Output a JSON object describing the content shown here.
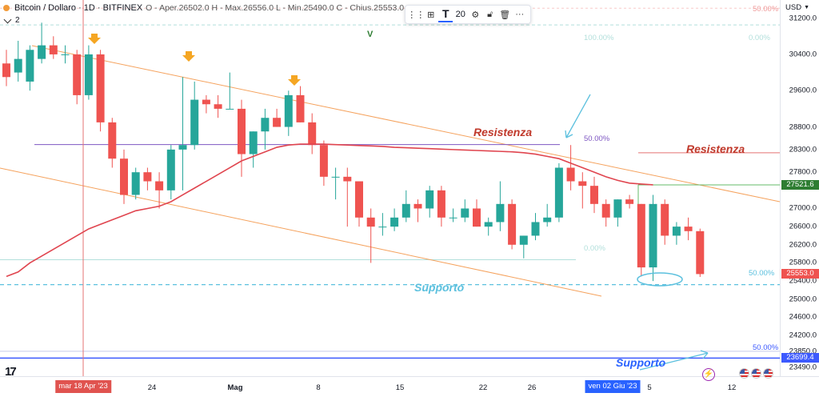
{
  "legend": {
    "symbol": "Bitcoin / Dollaro · 1D · BITFINEX",
    "ohlc": "O - Aper.26502.0 H - Max.26556.0 L - Min.25490.0 C - Chius.25553.0",
    "indicator_count": "2"
  },
  "toolbar": {
    "line_width": "20"
  },
  "price_axis": {
    "currency": "USD",
    "ticks": [
      "31200.0",
      "30400.0",
      "29600.0",
      "28800.0",
      "28300.0",
      "27800.0",
      "27000.0",
      "26600.0",
      "26200.0",
      "25800.0",
      "25400.0",
      "25000.0",
      "24600.0",
      "24200.0",
      "23850.0",
      "23490.0"
    ],
    "tags": {
      "ma": "27521.6",
      "last": "25553.0",
      "support": "23699.4"
    }
  },
  "time_axis": {
    "labels": [
      "24",
      "Mag",
      "8",
      "15",
      "22",
      "26",
      "5",
      "12"
    ],
    "highlights": [
      "mar 18 Apr '23",
      "ven 02 Giu '23"
    ]
  },
  "annotations": {
    "resistance_1": "Resistenza",
    "resistance_2": "Resistenza",
    "support_1": "Supporto",
    "support_2": "Supporto",
    "fib_top_left": "100.00%",
    "fib_top_right": "0.00%",
    "fib_top_far": "50.00%",
    "fib_mid": "50.00%",
    "fib_zero": "0.00%",
    "fib_right_mid": "50.00%",
    "fib_bottom": "50.00%",
    "v_marker": "V"
  },
  "colors": {
    "up": "#26a69a",
    "down": "#ef5350",
    "ma": "#e0454f",
    "channel": "#f5a25d",
    "support": "#3d5afe",
    "annotation_blue": "#5bc0de",
    "resistance_text": "#c0392b"
  },
  "chart_data": {
    "type": "candlestick",
    "ylim": [
      23300,
      31600
    ],
    "candles": [
      {
        "o": 30200,
        "h": 30500,
        "l": 29700,
        "c": 29900
      },
      {
        "o": 30000,
        "h": 30700,
        "l": 29800,
        "c": 30300
      },
      {
        "o": 29800,
        "h": 30600,
        "l": 29600,
        "c": 30500
      },
      {
        "o": 30300,
        "h": 31100,
        "l": 30200,
        "c": 30600
      },
      {
        "o": 30600,
        "h": 30800,
        "l": 30300,
        "c": 30400
      },
      {
        "o": 30400,
        "h": 30600,
        "l": 30200,
        "c": 30400
      },
      {
        "o": 30400,
        "h": 30500,
        "l": 29300,
        "c": 29500
      },
      {
        "o": 29500,
        "h": 30600,
        "l": 29400,
        "c": 30400
      },
      {
        "o": 30400,
        "h": 30500,
        "l": 28700,
        "c": 28900
      },
      {
        "o": 28900,
        "h": 29000,
        "l": 27900,
        "c": 28100
      },
      {
        "o": 28100,
        "h": 28300,
        "l": 27100,
        "c": 27300
      },
      {
        "o": 27300,
        "h": 27900,
        "l": 27200,
        "c": 27800
      },
      {
        "o": 27800,
        "h": 27900,
        "l": 27400,
        "c": 27600
      },
      {
        "o": 27600,
        "h": 27800,
        "l": 27000,
        "c": 27400
      },
      {
        "o": 27400,
        "h": 28400,
        "l": 27200,
        "c": 28300
      },
      {
        "o": 28300,
        "h": 29900,
        "l": 27400,
        "c": 28400
      },
      {
        "o": 28400,
        "h": 29800,
        "l": 28300,
        "c": 29400
      },
      {
        "o": 29400,
        "h": 29500,
        "l": 29100,
        "c": 29300
      },
      {
        "o": 29300,
        "h": 29500,
        "l": 29000,
        "c": 29200
      },
      {
        "o": 29200,
        "h": 30000,
        "l": 29200,
        "c": 29200
      },
      {
        "o": 29200,
        "h": 29400,
        "l": 27700,
        "c": 28200
      },
      {
        "o": 28200,
        "h": 28700,
        "l": 27900,
        "c": 28700
      },
      {
        "o": 28700,
        "h": 29200,
        "l": 28300,
        "c": 29000
      },
      {
        "o": 29000,
        "h": 29200,
        "l": 28800,
        "c": 28800
      },
      {
        "o": 28800,
        "h": 29600,
        "l": 28600,
        "c": 29500
      },
      {
        "o": 29500,
        "h": 29700,
        "l": 28900,
        "c": 28900
      },
      {
        "o": 28900,
        "h": 29100,
        "l": 28200,
        "c": 28400
      },
      {
        "o": 28400,
        "h": 28500,
        "l": 27500,
        "c": 27700
      },
      {
        "o": 27700,
        "h": 27900,
        "l": 27200,
        "c": 27700
      },
      {
        "o": 27700,
        "h": 27900,
        "l": 26600,
        "c": 27600
      },
      {
        "o": 27600,
        "h": 27600,
        "l": 26600,
        "c": 26800
      },
      {
        "o": 26800,
        "h": 27000,
        "l": 25800,
        "c": 26600
      },
      {
        "o": 26600,
        "h": 26900,
        "l": 26400,
        "c": 26600
      },
      {
        "o": 26600,
        "h": 27000,
        "l": 26500,
        "c": 26800
      },
      {
        "o": 26800,
        "h": 27400,
        "l": 26700,
        "c": 27100
      },
      {
        "o": 27100,
        "h": 27200,
        "l": 26700,
        "c": 27000
      },
      {
        "o": 27000,
        "h": 27500,
        "l": 26800,
        "c": 27400
      },
      {
        "o": 27400,
        "h": 27500,
        "l": 26600,
        "c": 26800
      },
      {
        "o": 26800,
        "h": 27000,
        "l": 26700,
        "c": 26800
      },
      {
        "o": 26800,
        "h": 27200,
        "l": 26700,
        "c": 27000
      },
      {
        "o": 27000,
        "h": 27200,
        "l": 26600,
        "c": 26600
      },
      {
        "o": 26600,
        "h": 26800,
        "l": 26400,
        "c": 26700
      },
      {
        "o": 26700,
        "h": 27600,
        "l": 26500,
        "c": 27100
      },
      {
        "o": 27100,
        "h": 27200,
        "l": 26100,
        "c": 26200
      },
      {
        "o": 26200,
        "h": 26400,
        "l": 25900,
        "c": 26400
      },
      {
        "o": 26400,
        "h": 26900,
        "l": 26300,
        "c": 26700
      },
      {
        "o": 26700,
        "h": 27100,
        "l": 26600,
        "c": 26800
      },
      {
        "o": 26800,
        "h": 28000,
        "l": 26700,
        "c": 27900
      },
      {
        "o": 27900,
        "h": 28400,
        "l": 27400,
        "c": 27600
      },
      {
        "o": 27600,
        "h": 27800,
        "l": 27000,
        "c": 27500
      },
      {
        "o": 27500,
        "h": 27700,
        "l": 26900,
        "c": 27100
      },
      {
        "o": 27100,
        "h": 27200,
        "l": 26600,
        "c": 26800
      },
      {
        "o": 26800,
        "h": 27200,
        "l": 26600,
        "c": 27200
      },
      {
        "o": 27200,
        "h": 27300,
        "l": 27000,
        "c": 27100
      },
      {
        "o": 27100,
        "h": 27100,
        "l": 25500,
        "c": 25700
      },
      {
        "o": 25700,
        "h": 27300,
        "l": 25400,
        "c": 27100
      },
      {
        "o": 27100,
        "h": 27200,
        "l": 26200,
        "c": 26400
      },
      {
        "o": 26400,
        "h": 26700,
        "l": 26200,
        "c": 26600
      },
      {
        "o": 26600,
        "h": 26800,
        "l": 26300,
        "c": 26500
      },
      {
        "o": 26500,
        "h": 26556,
        "l": 25490,
        "c": 25553
      }
    ],
    "moving_average": [
      25500,
      25600,
      25800,
      25950,
      26100,
      26250,
      26400,
      26550,
      26650,
      26750,
      26850,
      26950,
      27000,
      27050,
      27150,
      27300,
      27450,
      27600,
      27750,
      27900,
      28050,
      28150,
      28250,
      28350,
      28400,
      28420,
      28420,
      28420,
      28410,
      28400,
      28390,
      28380,
      28370,
      28350,
      28340,
      28330,
      28320,
      28310,
      28300,
      28290,
      28280,
      28270,
      28260,
      28250,
      28230,
      28200,
      28150,
      28100,
      28000,
      27900,
      27800,
      27700,
      27620,
      27560,
      27540,
      27521.6
    ],
    "levels": {
      "support": 23699.4,
      "fib_mid": 28410,
      "resistance_right": 28230,
      "ma_marker": 27521.6
    }
  }
}
